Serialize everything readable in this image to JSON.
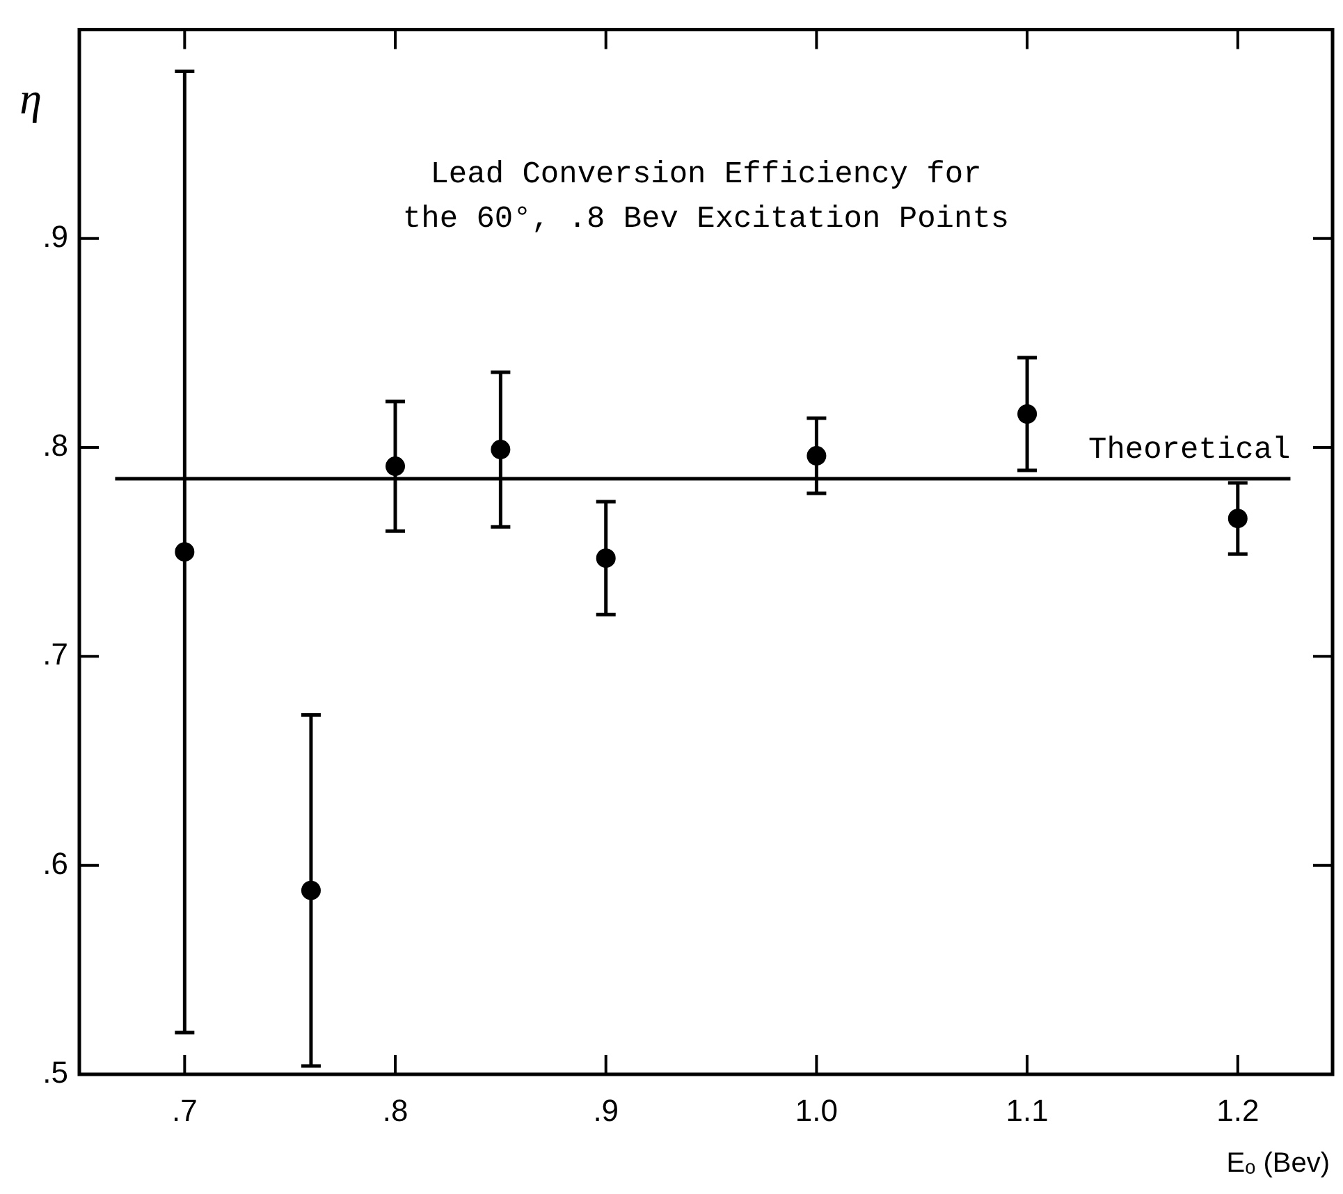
{
  "chart_data": {
    "type": "scatter",
    "title": "Lead Conversion Efficiency for\nthe 60°, .8 Bev Excitation Points",
    "xlabel": "Eₒ (Bev)",
    "ylabel": "η",
    "xlim": [
      0.65,
      1.245
    ],
    "ylim": [
      0.5,
      1.0
    ],
    "xticks": [
      {
        "value": 0.7,
        "label": ".7"
      },
      {
        "value": 0.8,
        "label": ".8"
      },
      {
        "value": 0.9,
        "label": ".9"
      },
      {
        "value": 1.0,
        "label": "1.0"
      },
      {
        "value": 1.1,
        "label": "1.1"
      },
      {
        "value": 1.2,
        "label": "1.2"
      }
    ],
    "yticks": [
      {
        "value": 0.5,
        "label": ".5"
      },
      {
        "value": 0.6,
        "label": ".6"
      },
      {
        "value": 0.7,
        "label": ".7"
      },
      {
        "value": 0.8,
        "label": ".8"
      },
      {
        "value": 0.9,
        "label": ".9"
      }
    ],
    "grid": false,
    "marker": "circle",
    "series": [
      {
        "color": "#000000",
        "x": [
          0.7,
          0.76,
          0.8,
          0.85,
          0.9,
          1.0,
          1.1,
          1.2
        ],
        "values": [
          0.75,
          0.588,
          0.791,
          0.799,
          0.747,
          0.796,
          0.816,
          0.766
        ],
        "errors": [
          0.23,
          0.084,
          0.031,
          0.037,
          0.027,
          0.018,
          0.027,
          0.017
        ]
      },
      {
        "type": "line",
        "name": "Theoretical",
        "color": "#000000",
        "marker": "none",
        "x": [
          0.667,
          1.225
        ],
        "values": [
          0.785,
          0.785
        ]
      }
    ]
  }
}
